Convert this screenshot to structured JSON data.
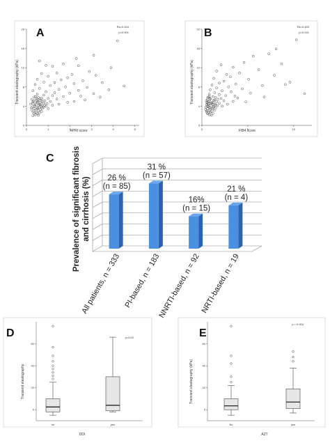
{
  "chart_data": [
    {
      "panel": "A",
      "type": "scatter",
      "xlabel": "APRI score",
      "ylabel": "Transient elastography (kPa)",
      "x_ticks": [
        "0",
        "1",
        "2",
        "3",
        "4",
        "5"
      ],
      "y_ticks": [
        "0",
        "4",
        "8",
        "12",
        "16",
        "20"
      ],
      "xlim": [
        0,
        5.2
      ],
      "ylim": [
        0,
        20
      ],
      "annotations": [
        "Rs=0.444",
        "p<0.001"
      ],
      "points": [
        [
          4.2,
          17.6
        ],
        [
          3.1,
          14.6
        ],
        [
          2.3,
          13.9
        ],
        [
          0.6,
          13.4
        ],
        [
          1.7,
          12.8
        ],
        [
          0.9,
          12.5
        ],
        [
          1.2,
          12.3
        ],
        [
          2.4,
          12.4
        ],
        [
          3.9,
          12.0
        ],
        [
          2.9,
          11.2
        ],
        [
          1.4,
          10.9
        ],
        [
          0.7,
          10.8
        ],
        [
          2.1,
          10.6
        ],
        [
          3.2,
          10.4
        ],
        [
          1.0,
          10.2
        ],
        [
          1.9,
          9.9
        ],
        [
          0.5,
          9.6
        ],
        [
          1.6,
          9.5
        ],
        [
          2.6,
          9.3
        ],
        [
          0.8,
          9.0
        ],
        [
          1.3,
          8.9
        ],
        [
          2.2,
          8.7
        ],
        [
          3.5,
          8.9
        ],
        [
          0.4,
          8.5
        ],
        [
          1.1,
          8.3
        ],
        [
          1.8,
          8.0
        ],
        [
          2.8,
          7.9
        ],
        [
          0.6,
          7.7
        ],
        [
          1.5,
          7.5
        ],
        [
          2.4,
          7.3
        ],
        [
          3.8,
          7.4
        ],
        [
          0.3,
          7.2
        ],
        [
          0.9,
          7.0
        ],
        [
          1.3,
          6.8
        ],
        [
          2.0,
          6.7
        ],
        [
          3.1,
          6.6
        ],
        [
          0.5,
          6.5
        ],
        [
          0.8,
          6.3
        ],
        [
          1.2,
          6.2
        ],
        [
          1.7,
          6.0
        ],
        [
          2.5,
          6.1
        ],
        [
          0.35,
          5.9
        ],
        [
          0.55,
          5.8
        ],
        [
          0.7,
          5.7
        ],
        [
          1.0,
          5.6
        ],
        [
          1.4,
          5.5
        ],
        [
          0.25,
          5.4
        ],
        [
          0.45,
          5.3
        ],
        [
          0.6,
          5.2
        ],
        [
          0.85,
          5.1
        ],
        [
          1.1,
          5.0
        ],
        [
          0.3,
          4.9
        ],
        [
          0.5,
          4.8
        ],
        [
          0.65,
          4.7
        ],
        [
          0.8,
          4.6
        ],
        [
          0.95,
          4.5
        ],
        [
          0.2,
          4.4
        ],
        [
          0.4,
          4.3
        ],
        [
          0.55,
          4.2
        ],
        [
          0.7,
          4.1
        ],
        [
          0.9,
          4.0
        ],
        [
          1.2,
          4.2
        ],
        [
          0.3,
          3.9
        ],
        [
          0.45,
          3.8
        ],
        [
          0.6,
          3.7
        ],
        [
          0.75,
          3.6
        ],
        [
          0.35,
          3.5
        ],
        [
          0.5,
          3.4
        ],
        [
          0.65,
          3.3
        ],
        [
          0.25,
          3.2
        ],
        [
          0.4,
          3.1
        ],
        [
          0.55,
          3.0
        ],
        [
          0.7,
          2.9
        ],
        [
          0.3,
          2.8
        ],
        [
          0.45,
          2.7
        ],
        [
          0.6,
          2.6
        ],
        [
          0.35,
          2.5
        ],
        [
          0.5,
          2.4
        ],
        [
          0.4,
          2.2
        ],
        [
          0.55,
          2.1
        ],
        [
          0.3,
          2.0
        ],
        [
          0.8,
          3.8
        ],
        [
          1.0,
          3.5
        ],
        [
          1.5,
          4.4
        ],
        [
          0.28,
          4.6
        ],
        [
          0.62,
          5.5
        ],
        [
          0.42,
          6.0
        ],
        [
          0.72,
          4.9
        ],
        [
          0.52,
          3.6
        ],
        [
          0.38,
          4.1
        ],
        [
          0.48,
          5.6
        ],
        [
          0.58,
          4.4
        ],
        [
          0.68,
          3.9
        ],
        [
          0.33,
          5.1
        ],
        [
          0.43,
          4.7
        ],
        [
          0.53,
          5.0
        ],
        [
          0.63,
          4.3
        ],
        [
          0.73,
          5.3
        ],
        [
          0.83,
          4.2
        ],
        [
          0.22,
          3.7
        ],
        [
          4.5,
          8.2
        ],
        [
          2.7,
          5.3
        ],
        [
          3.4,
          5.9
        ],
        [
          1.9,
          4.8
        ],
        [
          2.2,
          5.0
        ]
      ]
    },
    {
      "panel": "B",
      "type": "scatter",
      "xlabel": "FIB4 score",
      "ylabel": "Transient elastography (kPa)",
      "x_ticks": [
        "0",
        "5",
        "10"
      ],
      "y_ticks": [
        "0",
        "4",
        "8",
        "12",
        "16",
        "20"
      ],
      "xlim": [
        0,
        12
      ],
      "ylim": [
        0,
        20
      ],
      "annotations": [
        "Rs=0.400",
        "p<0.001"
      ],
      "points": [
        [
          10.3,
          17.8
        ],
        [
          8.1,
          15.9
        ],
        [
          7.3,
          14.9
        ],
        [
          5.6,
          14.4
        ],
        [
          4.6,
          13.1
        ],
        [
          2.1,
          12.6
        ],
        [
          8.7,
          12.8
        ],
        [
          3.4,
          12.1
        ],
        [
          6.2,
          11.6
        ],
        [
          1.6,
          11.3
        ],
        [
          4.1,
          10.9
        ],
        [
          2.7,
          10.6
        ],
        [
          7.9,
          10.4
        ],
        [
          3.1,
          10.1
        ],
        [
          1.3,
          9.8
        ],
        [
          5.1,
          9.6
        ],
        [
          2.4,
          9.2
        ],
        [
          9.6,
          9.0
        ],
        [
          1.9,
          8.8
        ],
        [
          3.7,
          8.6
        ],
        [
          1.1,
          8.4
        ],
        [
          6.6,
          8.3
        ],
        [
          2.9,
          8.0
        ],
        [
          1.6,
          7.8
        ],
        [
          4.4,
          7.6
        ],
        [
          0.9,
          7.4
        ],
        [
          2.2,
          7.2
        ],
        [
          3.2,
          7.0
        ],
        [
          1.4,
          6.8
        ],
        [
          5.3,
          6.7
        ],
        [
          0.8,
          6.5
        ],
        [
          1.9,
          6.4
        ],
        [
          2.6,
          6.2
        ],
        [
          1.2,
          6.0
        ],
        [
          3.6,
          6.1
        ],
        [
          0.7,
          5.9
        ],
        [
          1.5,
          5.8
        ],
        [
          2.1,
          5.6
        ],
        [
          0.95,
          5.5
        ],
        [
          1.75,
          5.4
        ],
        [
          0.6,
          5.3
        ],
        [
          1.3,
          5.2
        ],
        [
          2.4,
          5.1
        ],
        [
          0.85,
          5.0
        ],
        [
          1.6,
          4.9
        ],
        [
          0.55,
          4.8
        ],
        [
          1.1,
          4.7
        ],
        [
          1.9,
          4.6
        ],
        [
          0.75,
          4.5
        ],
        [
          1.45,
          4.4
        ],
        [
          0.5,
          4.3
        ],
        [
          1.0,
          4.2
        ],
        [
          1.7,
          4.1
        ],
        [
          0.65,
          4.0
        ],
        [
          1.25,
          3.9
        ],
        [
          2.2,
          4.0
        ],
        [
          0.45,
          3.8
        ],
        [
          0.9,
          3.7
        ],
        [
          1.5,
          3.6
        ],
        [
          0.6,
          3.5
        ],
        [
          1.15,
          3.4
        ],
        [
          0.4,
          3.3
        ],
        [
          0.8,
          3.2
        ],
        [
          1.35,
          3.1
        ],
        [
          0.55,
          3.0
        ],
        [
          1.0,
          2.9
        ],
        [
          0.5,
          2.8
        ],
        [
          0.9,
          2.7
        ],
        [
          0.7,
          2.6
        ],
        [
          1.2,
          2.5
        ],
        [
          0.6,
          2.4
        ],
        [
          0.8,
          2.2
        ],
        [
          1.05,
          2.1
        ],
        [
          2.8,
          4.4
        ],
        [
          3.4,
          5.0
        ],
        [
          0.72,
          4.9
        ],
        [
          0.88,
          5.6
        ],
        [
          1.02,
          4.6
        ],
        [
          1.22,
          4.8
        ],
        [
          1.38,
          5.3
        ],
        [
          0.58,
          4.6
        ],
        [
          0.68,
          3.9
        ],
        [
          0.78,
          4.2
        ],
        [
          0.98,
          3.5
        ],
        [
          1.18,
          4.4
        ],
        [
          1.28,
          3.8
        ],
        [
          1.48,
          4.2
        ],
        [
          0.48,
          5.1
        ],
        [
          0.62,
          5.7
        ],
        [
          0.82,
          6.1
        ],
        [
          11.2,
          6.6
        ],
        [
          9.1,
          8.5
        ],
        [
          6.8,
          5.9
        ],
        [
          4.8,
          4.9
        ],
        [
          3.9,
          5.7
        ]
      ]
    },
    {
      "panel": "C",
      "type": "bar",
      "ylabel": "Prevalence of significant fibrosis and cirrhosis (%)",
      "categories": [
        "All patients, n = 333",
        "PI-based, n = 183",
        "NNRTI-based, n = 92",
        "NRTI-based, n = 19"
      ],
      "values": [
        26,
        31,
        16,
        21
      ],
      "ylim": [
        0,
        40
      ],
      "data_labels": [
        "26 %",
        "31 %",
        "16%",
        "21 %"
      ],
      "n_labels": [
        "(n = 85)",
        "(n = 57)",
        "(n = 15)",
        "(n = 4)"
      ],
      "bar_color": "#4a8fe0",
      "bar_side_color": "#2c62b0"
    },
    {
      "panel": "D",
      "type": "box",
      "xlabel": "DDI",
      "ylabel": "Transient elastography",
      "categories": [
        "no",
        "yes"
      ],
      "annotation": "p=0.02",
      "ylim": [
        -10,
        80
      ],
      "boxes": [
        {
          "whisker_low": -5,
          "q1": -2,
          "median": 2.5,
          "q3": 10,
          "whisker_high": 25,
          "outliers": [
            28,
            31,
            34,
            37,
            40,
            44,
            49,
            57,
            76
          ]
        },
        {
          "whisker_low": -2,
          "q1": -1,
          "median": 4,
          "q3": 30,
          "whisker_high": 66,
          "outliers": []
        }
      ]
    },
    {
      "panel": "E",
      "type": "box",
      "xlabel": "AZT",
      "ylabel": "Transient elastography (kPa)",
      "categories": [
        "No",
        "yes"
      ],
      "annotation": "p = 0.004",
      "ylim": [
        -10,
        80
      ],
      "boxes": [
        {
          "whisker_low": -5,
          "q1": 0,
          "median": 3.5,
          "q3": 10,
          "whisker_high": 22,
          "outliers": [
            25,
            30,
            42,
            49,
            76
          ]
        },
        {
          "whisker_low": -3,
          "q1": 1,
          "median": 7,
          "q3": 19,
          "whisker_high": 38,
          "outliers": [
            44,
            48,
            53
          ]
        }
      ]
    }
  ]
}
